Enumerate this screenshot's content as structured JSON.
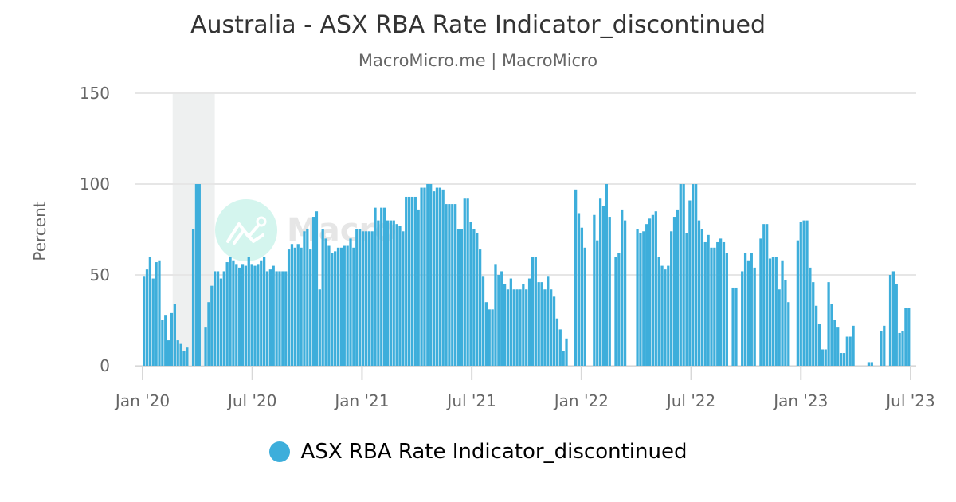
{
  "header": {
    "title": "Australia - ASX RBA Rate Indicator_discontinued",
    "subtitle": "MacroMicro.me | MacroMicro"
  },
  "legend": {
    "label": "ASX RBA Rate Indicator_discontinued",
    "color": "#3daedb"
  },
  "watermark": {
    "text": "Macro"
  },
  "chart_data": {
    "type": "bar",
    "title": "Australia - ASX RBA Rate Indicator_discontinued",
    "subtitle": "MacroMicro.me | MacroMicro",
    "xlabel": "",
    "ylabel": "Percent",
    "ylim": [
      0,
      150
    ],
    "yticks": [
      0,
      50,
      100,
      150
    ],
    "xticks": [
      "Jan '20",
      "Jul '20",
      "Jan '21",
      "Jul '21",
      "Jan '22",
      "Jul '22",
      "Jan '23",
      "Jul '23"
    ],
    "grid": true,
    "legend_position": "bottom",
    "series_color": "#3daedb",
    "shaded_region": {
      "from": "2020-02-20",
      "to": "2020-04-30",
      "color": "#eef0f0"
    },
    "x_range": [
      "2020-01-01",
      "2023-07-01"
    ],
    "series": [
      {
        "name": "ASX RBA Rate Indicator_discontinued",
        "values": [
          49,
          53,
          60,
          48,
          57,
          58,
          25,
          28,
          14,
          29,
          34,
          14,
          12,
          8,
          10,
          null,
          75,
          100,
          100,
          null,
          21,
          35,
          44,
          52,
          52,
          48,
          52,
          57,
          60,
          58,
          56,
          54,
          56,
          55,
          60,
          56,
          55,
          56,
          58,
          60,
          52,
          53,
          55,
          52,
          52,
          52,
          52,
          64,
          67,
          65,
          67,
          65,
          74,
          75,
          64,
          82,
          85,
          42,
          75,
          70,
          66,
          62,
          63,
          65,
          65,
          66,
          66,
          70,
          65,
          75,
          75,
          74,
          74,
          74,
          74,
          87,
          80,
          87,
          87,
          80,
          80,
          80,
          78,
          77,
          74,
          93,
          93,
          93,
          93,
          86,
          98,
          98,
          100,
          100,
          96,
          98,
          98,
          97,
          89,
          89,
          89,
          89,
          75,
          75,
          92,
          92,
          79,
          75,
          73,
          64,
          49,
          35,
          31,
          31,
          56,
          50,
          52,
          45,
          42,
          48,
          42,
          42,
          42,
          45,
          42,
          48,
          60,
          60,
          46,
          46,
          42,
          49,
          42,
          38,
          26,
          20,
          8,
          15,
          null,
          null,
          97,
          84,
          76,
          65,
          null,
          null,
          83,
          69,
          92,
          88,
          100,
          82,
          null,
          60,
          62,
          86,
          80,
          null,
          null,
          null,
          75,
          73,
          74,
          78,
          81,
          83,
          85,
          60,
          55,
          53,
          55,
          74,
          82,
          86,
          100,
          100,
          73,
          91,
          100,
          100,
          80,
          75,
          68,
          72,
          65,
          65,
          68,
          70,
          68,
          62,
          null,
          43,
          43,
          null,
          52,
          62,
          58,
          62,
          54,
          null,
          70,
          78,
          78,
          59,
          60,
          60,
          42,
          58,
          47,
          35,
          null,
          null,
          69,
          79,
          80,
          80,
          54,
          46,
          33,
          23,
          9,
          9,
          46,
          34,
          25,
          21,
          7,
          7,
          16,
          16,
          22,
          null,
          null,
          null,
          null,
          2,
          2,
          null,
          null,
          19,
          22,
          null,
          50,
          52,
          45,
          18,
          19,
          32,
          32
        ]
      }
    ]
  }
}
